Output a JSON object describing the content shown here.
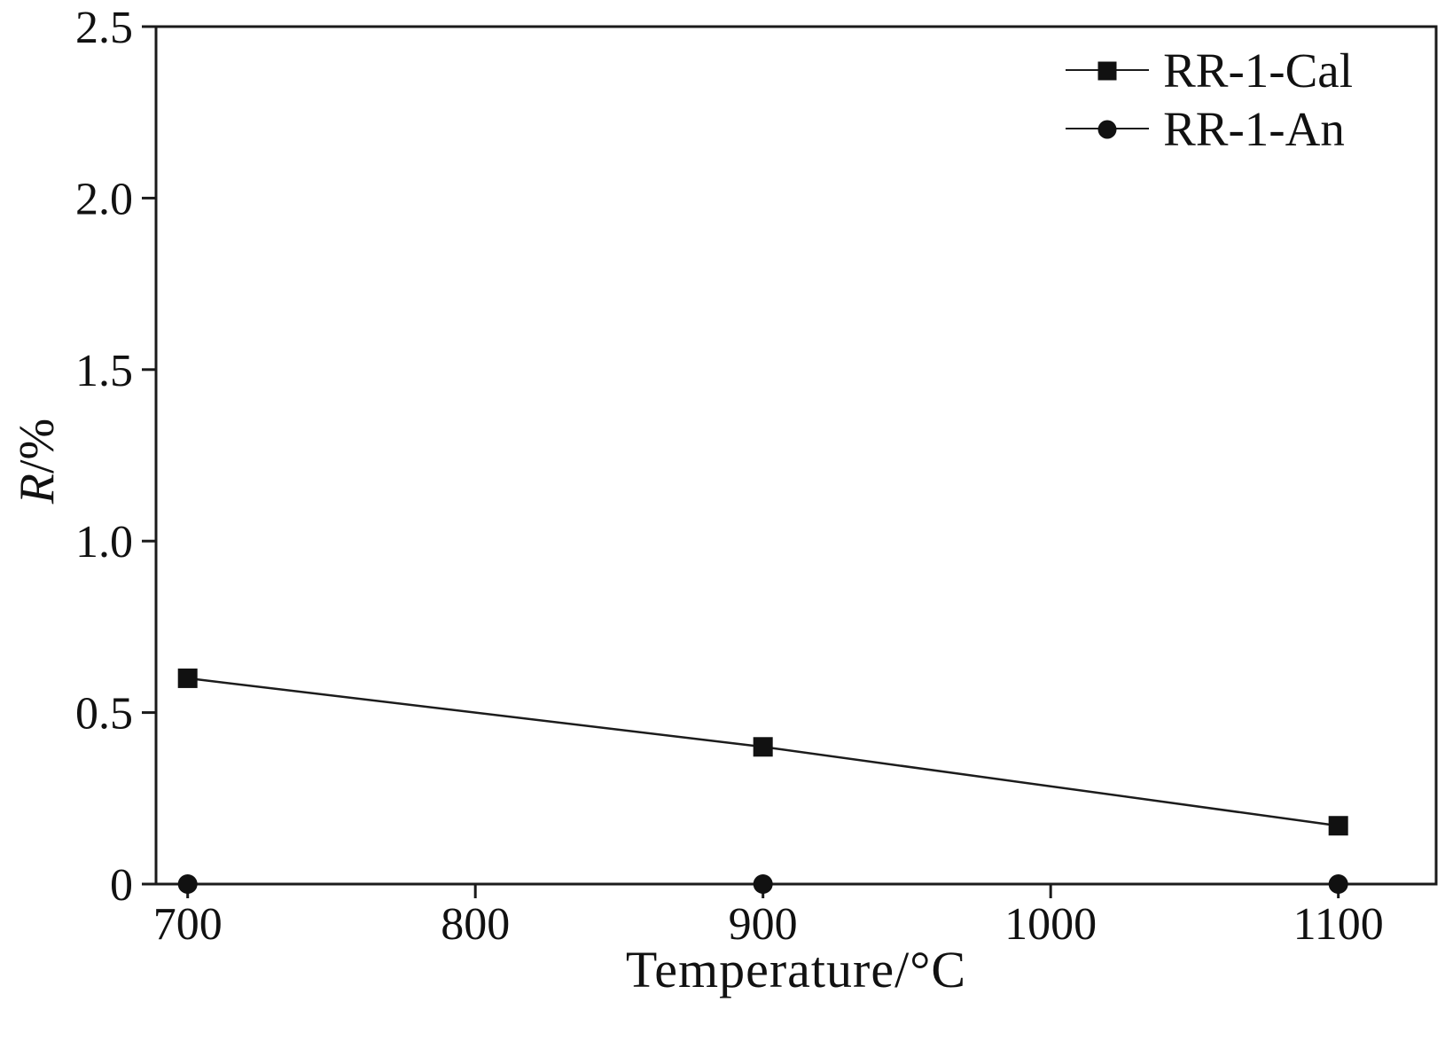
{
  "chart_data": {
    "type": "line",
    "title": "",
    "xlabel": "Temperature/°C",
    "ylabel": "R/%",
    "ylabel_italic": "R",
    "ylabel_rest": "/%",
    "x": [
      700,
      900,
      1100
    ],
    "series": [
      {
        "name": "RR-1-Cal",
        "marker": "square",
        "values": [
          0.6,
          0.4,
          0.17
        ]
      },
      {
        "name": "RR-1-An",
        "marker": "circle",
        "values": [
          0.0,
          0.0,
          0.0
        ]
      }
    ],
    "xlim": [
      689,
      1134
    ],
    "ylim": [
      0,
      2.5
    ],
    "x_ticks": [
      700,
      800,
      900,
      1000,
      1100
    ],
    "x_tick_labels": [
      "700",
      "800",
      "900",
      "1000",
      "1100"
    ],
    "y_ticks": [
      0,
      0.5,
      1.0,
      1.5,
      2.0,
      2.5
    ],
    "y_tick_labels": [
      "0",
      "0.5",
      "1.0",
      "1.5",
      "2.0",
      "2.5"
    ],
    "grid": false,
    "legend_position": "top-right",
    "line_color": "#1c1c1c",
    "marker_color": "#111111",
    "axis_color": "#1a1a1a",
    "background": "#ffffff"
  }
}
